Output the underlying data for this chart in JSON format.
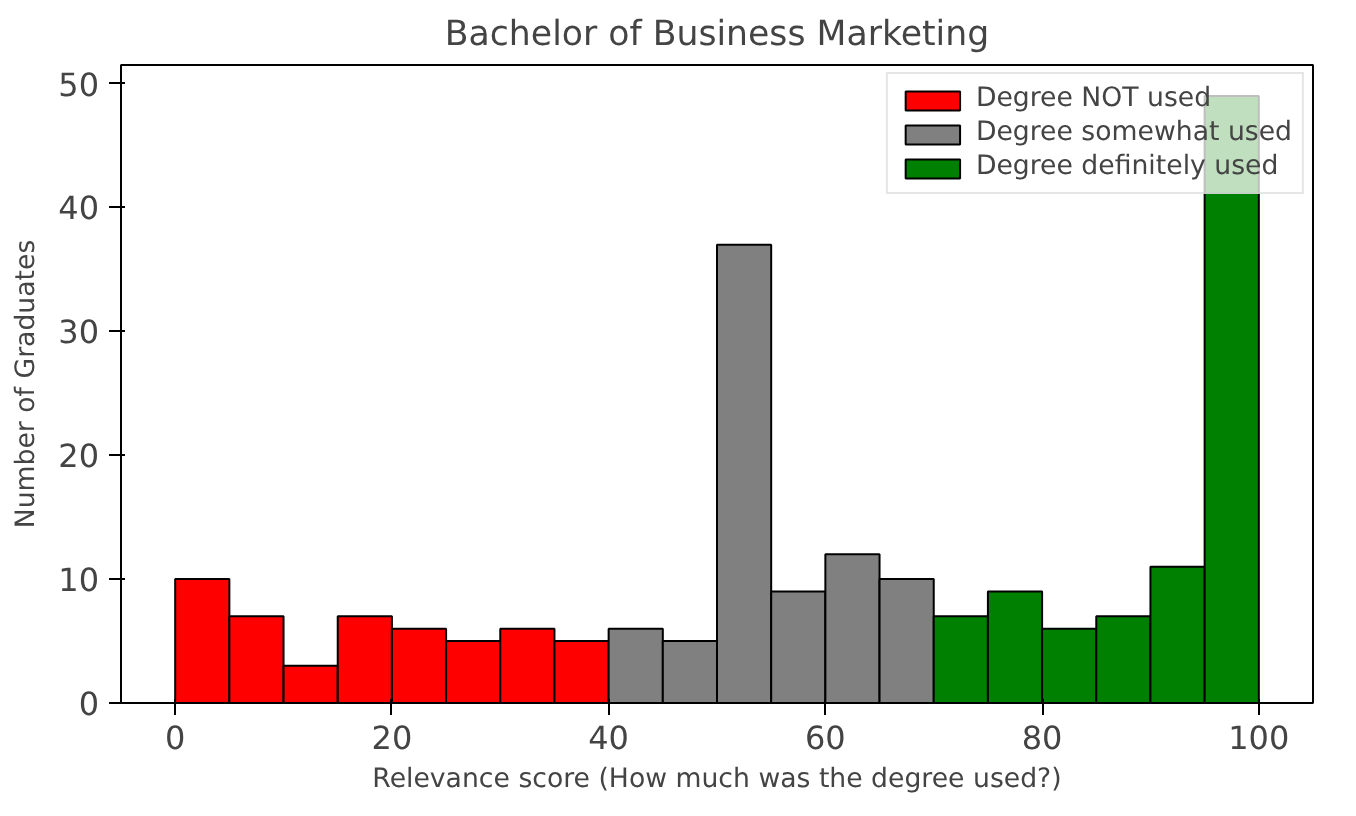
{
  "chart_data": {
    "type": "histogram",
    "title": "Bachelor of Business Marketing",
    "xlabel": "Relevance score (How much was the degree used?)",
    "ylabel": "Number of Graduates",
    "bins": [
      0,
      5,
      10,
      15,
      20,
      25,
      30,
      35,
      40,
      45,
      50,
      55,
      60,
      65,
      70,
      75,
      80,
      85,
      90,
      95,
      100
    ],
    "series": [
      {
        "name": "Degree NOT used",
        "color": "#ff0000",
        "values": [
          10,
          7,
          3,
          7,
          6,
          5,
          6,
          5,
          null,
          null,
          null,
          null,
          null,
          null,
          null,
          null,
          null,
          null,
          null,
          null
        ]
      },
      {
        "name": "Degree somewhat used",
        "color": "#808080",
        "values": [
          null,
          null,
          null,
          null,
          null,
          null,
          null,
          null,
          6,
          5,
          37,
          9,
          12,
          10,
          null,
          null,
          null,
          null,
          null,
          null
        ]
      },
      {
        "name": "Degree definitely used",
        "color": "#008000",
        "values": [
          null,
          null,
          null,
          null,
          null,
          null,
          null,
          null,
          null,
          null,
          null,
          null,
          null,
          null,
          7,
          9,
          6,
          7,
          11,
          49
        ]
      }
    ],
    "xlim": [
      -5,
      105
    ],
    "ylim": [
      0,
      51.5
    ],
    "xticks": [
      0,
      20,
      40,
      60,
      80,
      100
    ],
    "yticks": [
      0,
      10,
      20,
      30,
      40,
      50
    ],
    "grid": false,
    "legend": "top right"
  }
}
